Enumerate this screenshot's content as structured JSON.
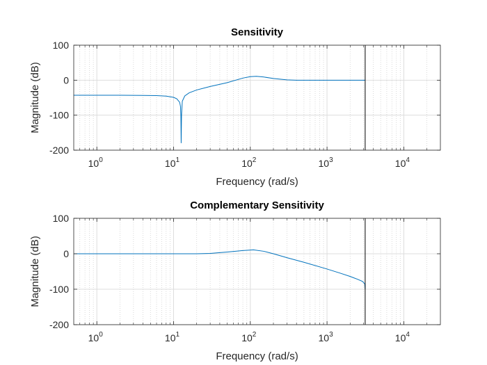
{
  "chart_data": [
    {
      "type": "line",
      "title": "Sensitivity",
      "xlabel": "Frequency  (rad/s)",
      "ylabel": "Magnitude (dB)",
      "xscale": "log",
      "xlim": [
        0.5,
        30000
      ],
      "ylim": [
        -200,
        100
      ],
      "yticks": [
        {
          "value": 100,
          "label": "100"
        },
        {
          "value": 0,
          "label": "0"
        },
        {
          "value": -100,
          "label": "-100"
        },
        {
          "value": -200,
          "label": "-200"
        }
      ],
      "xticks": [
        {
          "value": 1,
          "base": "10",
          "exp": "0"
        },
        {
          "value": 10,
          "base": "10",
          "exp": "1"
        },
        {
          "value": 100,
          "base": "10",
          "exp": "2"
        },
        {
          "value": 1000,
          "base": "10",
          "exp": "3"
        },
        {
          "value": 10000,
          "base": "10",
          "exp": "4"
        }
      ],
      "grid": true,
      "minor_grid": true,
      "series_color": "#0072bd",
      "nyquist_line": {
        "x": 3140,
        "color": "#000000"
      },
      "series": [
        {
          "x": [
            0.5,
            1,
            2,
            4,
            6,
            8,
            10,
            11,
            12,
            12.3,
            12.45,
            12.56,
            12.7,
            13,
            14,
            16,
            20,
            30,
            50,
            80,
            100,
            120,
            150,
            200,
            300,
            400,
            600,
            1000,
            2000,
            3140
          ],
          "y": [
            -43,
            -43,
            -43,
            -43.5,
            -44,
            -45.5,
            -49,
            -53,
            -63,
            -75,
            -100,
            -180,
            -100,
            -60,
            -45,
            -36,
            -28,
            -18,
            -7,
            6,
            10,
            11,
            9,
            5,
            1,
            0,
            0,
            0,
            0,
            0
          ]
        }
      ]
    },
    {
      "type": "line",
      "title": "Complementary Sensitivity",
      "xlabel": "Frequency  (rad/s)",
      "ylabel": "Magnitude (dB)",
      "xscale": "log",
      "xlim": [
        0.5,
        30000
      ],
      "ylim": [
        -200,
        100
      ],
      "yticks": [
        {
          "value": 100,
          "label": "100"
        },
        {
          "value": 0,
          "label": "0"
        },
        {
          "value": -100,
          "label": "-100"
        },
        {
          "value": -200,
          "label": "-200"
        }
      ],
      "xticks": [
        {
          "value": 1,
          "base": "10",
          "exp": "0"
        },
        {
          "value": 10,
          "base": "10",
          "exp": "1"
        },
        {
          "value": 100,
          "base": "10",
          "exp": "2"
        },
        {
          "value": 1000,
          "base": "10",
          "exp": "3"
        },
        {
          "value": 10000,
          "base": "10",
          "exp": "4"
        }
      ],
      "grid": true,
      "minor_grid": true,
      "series_color": "#0072bd",
      "nyquist_line": {
        "x": 3140,
        "color": "#000000"
      },
      "series": [
        {
          "x": [
            0.5,
            1,
            5,
            10,
            20,
            30,
            50,
            80,
            110,
            150,
            200,
            300,
            500,
            1000,
            1500,
            2000,
            2500,
            2900,
            3100,
            3140
          ],
          "y": [
            0,
            0,
            0,
            0,
            0,
            1,
            5,
            9,
            11,
            7,
            0,
            -11,
            -24,
            -43,
            -55,
            -64,
            -72,
            -78,
            -85,
            -100
          ]
        }
      ]
    }
  ]
}
